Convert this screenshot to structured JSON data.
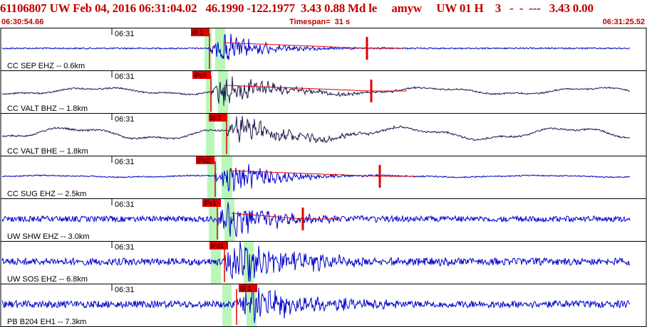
{
  "header": {
    "event_line": "61106807 UW Feb 04, 2016 06:31:04.02   46.1990 -122.1977  3.43 0.88 Md le     amyw     UW 01 H    3   -  -  ---   3.43 0.00",
    "start_time": "06:30:54.66",
    "timespan": "Timespan=  31 s",
    "end_time": "06:31:25.52"
  },
  "colors": {
    "header_text": "#c00000",
    "trace_blue": "#0000cc",
    "trace_dark": "#1a1a4d",
    "pick_red": "#e00000",
    "window_green": "#b8f7b8",
    "border": "#000000"
  },
  "channels": [
    {
      "label": "CC SEP EHZ -- 0.6km",
      "minute": "06:31",
      "pick": "iP 1",
      "color": "blue",
      "s_pick": ""
    },
    {
      "label": "CC VALT BHZ -- 1.8km",
      "minute": "06:31",
      "pick": "iPc0",
      "color": "dark",
      "s_pick": ""
    },
    {
      "label": "CC VALT BHE -- 1.8km",
      "minute": "06:31",
      "pick": "iS 1",
      "color": "dark",
      "s_pick": ""
    },
    {
      "label": "CC SUG EHZ -- 2.5km",
      "minute": "06:31",
      "pick": "iPc0",
      "color": "blue",
      "s_pick": ""
    },
    {
      "label": "UW SHW EHZ -- 3.0km",
      "minute": "06:31",
      "pick": "iPc1",
      "color": "blue",
      "s_pick": ""
    },
    {
      "label": "UW SOS EHZ -- 6.8km",
      "minute": "06:31",
      "pick": "iPd1",
      "color": "blue",
      "s_pick": ""
    },
    {
      "label": "PB B204 EH1 -- 7.3km",
      "minute": "06:31",
      "pick": "",
      "color": "blue",
      "s_pick": "iS 1"
    }
  ]
}
